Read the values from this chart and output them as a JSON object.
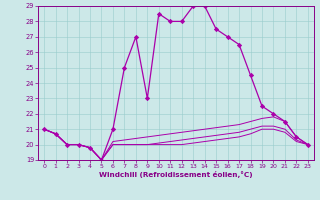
{
  "xlabel": "Windchill (Refroidissement éolien,°C)",
  "ylabel": "",
  "xlim": [
    -0.5,
    23.5
  ],
  "ylim": [
    19,
    29
  ],
  "xticks": [
    0,
    1,
    2,
    3,
    4,
    5,
    6,
    7,
    8,
    9,
    10,
    11,
    12,
    13,
    14,
    15,
    16,
    17,
    18,
    19,
    20,
    21,
    22,
    23
  ],
  "yticks": [
    19,
    20,
    21,
    22,
    23,
    24,
    25,
    26,
    27,
    28,
    29
  ],
  "bg_color": "#cce8e8",
  "line_color": "#aa00aa",
  "lines": [
    {
      "x": [
        0,
        1,
        2,
        3,
        4,
        5,
        6,
        7,
        8,
        9,
        10,
        11,
        12,
        13,
        14,
        15,
        16,
        17,
        18,
        19,
        20,
        21,
        22,
        23
      ],
      "y": [
        21.0,
        20.7,
        20.0,
        20.0,
        19.8,
        19.0,
        21.0,
        25.0,
        27.0,
        23.0,
        28.5,
        28.0,
        28.0,
        29.0,
        29.0,
        27.5,
        27.0,
        26.5,
        24.5,
        22.5,
        22.0,
        21.5,
        20.5,
        20.0
      ],
      "marker": true
    },
    {
      "x": [
        0,
        1,
        2,
        3,
        4,
        5,
        6,
        7,
        8,
        9,
        10,
        11,
        12,
        13,
        14,
        15,
        16,
        17,
        18,
        19,
        20,
        21,
        22,
        23
      ],
      "y": [
        21.0,
        20.7,
        20.0,
        20.0,
        19.8,
        19.0,
        20.2,
        20.3,
        20.4,
        20.5,
        20.6,
        20.7,
        20.8,
        20.9,
        21.0,
        21.1,
        21.2,
        21.3,
        21.5,
        21.7,
        21.8,
        21.5,
        20.5,
        20.0
      ],
      "marker": false
    },
    {
      "x": [
        0,
        1,
        2,
        3,
        4,
        5,
        6,
        7,
        8,
        9,
        10,
        11,
        12,
        13,
        14,
        15,
        16,
        17,
        18,
        19,
        20,
        21,
        22,
        23
      ],
      "y": [
        21.0,
        20.7,
        20.0,
        20.0,
        19.8,
        19.0,
        20.0,
        20.0,
        20.0,
        20.0,
        20.1,
        20.2,
        20.3,
        20.4,
        20.5,
        20.6,
        20.7,
        20.8,
        21.0,
        21.2,
        21.2,
        21.0,
        20.3,
        20.0
      ],
      "marker": false
    },
    {
      "x": [
        0,
        1,
        2,
        3,
        4,
        5,
        6,
        7,
        8,
        9,
        10,
        11,
        12,
        13,
        14,
        15,
        16,
        17,
        18,
        19,
        20,
        21,
        22,
        23
      ],
      "y": [
        21.0,
        20.7,
        20.0,
        20.0,
        19.8,
        19.0,
        20.0,
        20.0,
        20.0,
        20.0,
        20.0,
        20.0,
        20.0,
        20.1,
        20.2,
        20.3,
        20.4,
        20.5,
        20.7,
        21.0,
        21.0,
        20.8,
        20.2,
        20.0
      ],
      "marker": false
    }
  ]
}
